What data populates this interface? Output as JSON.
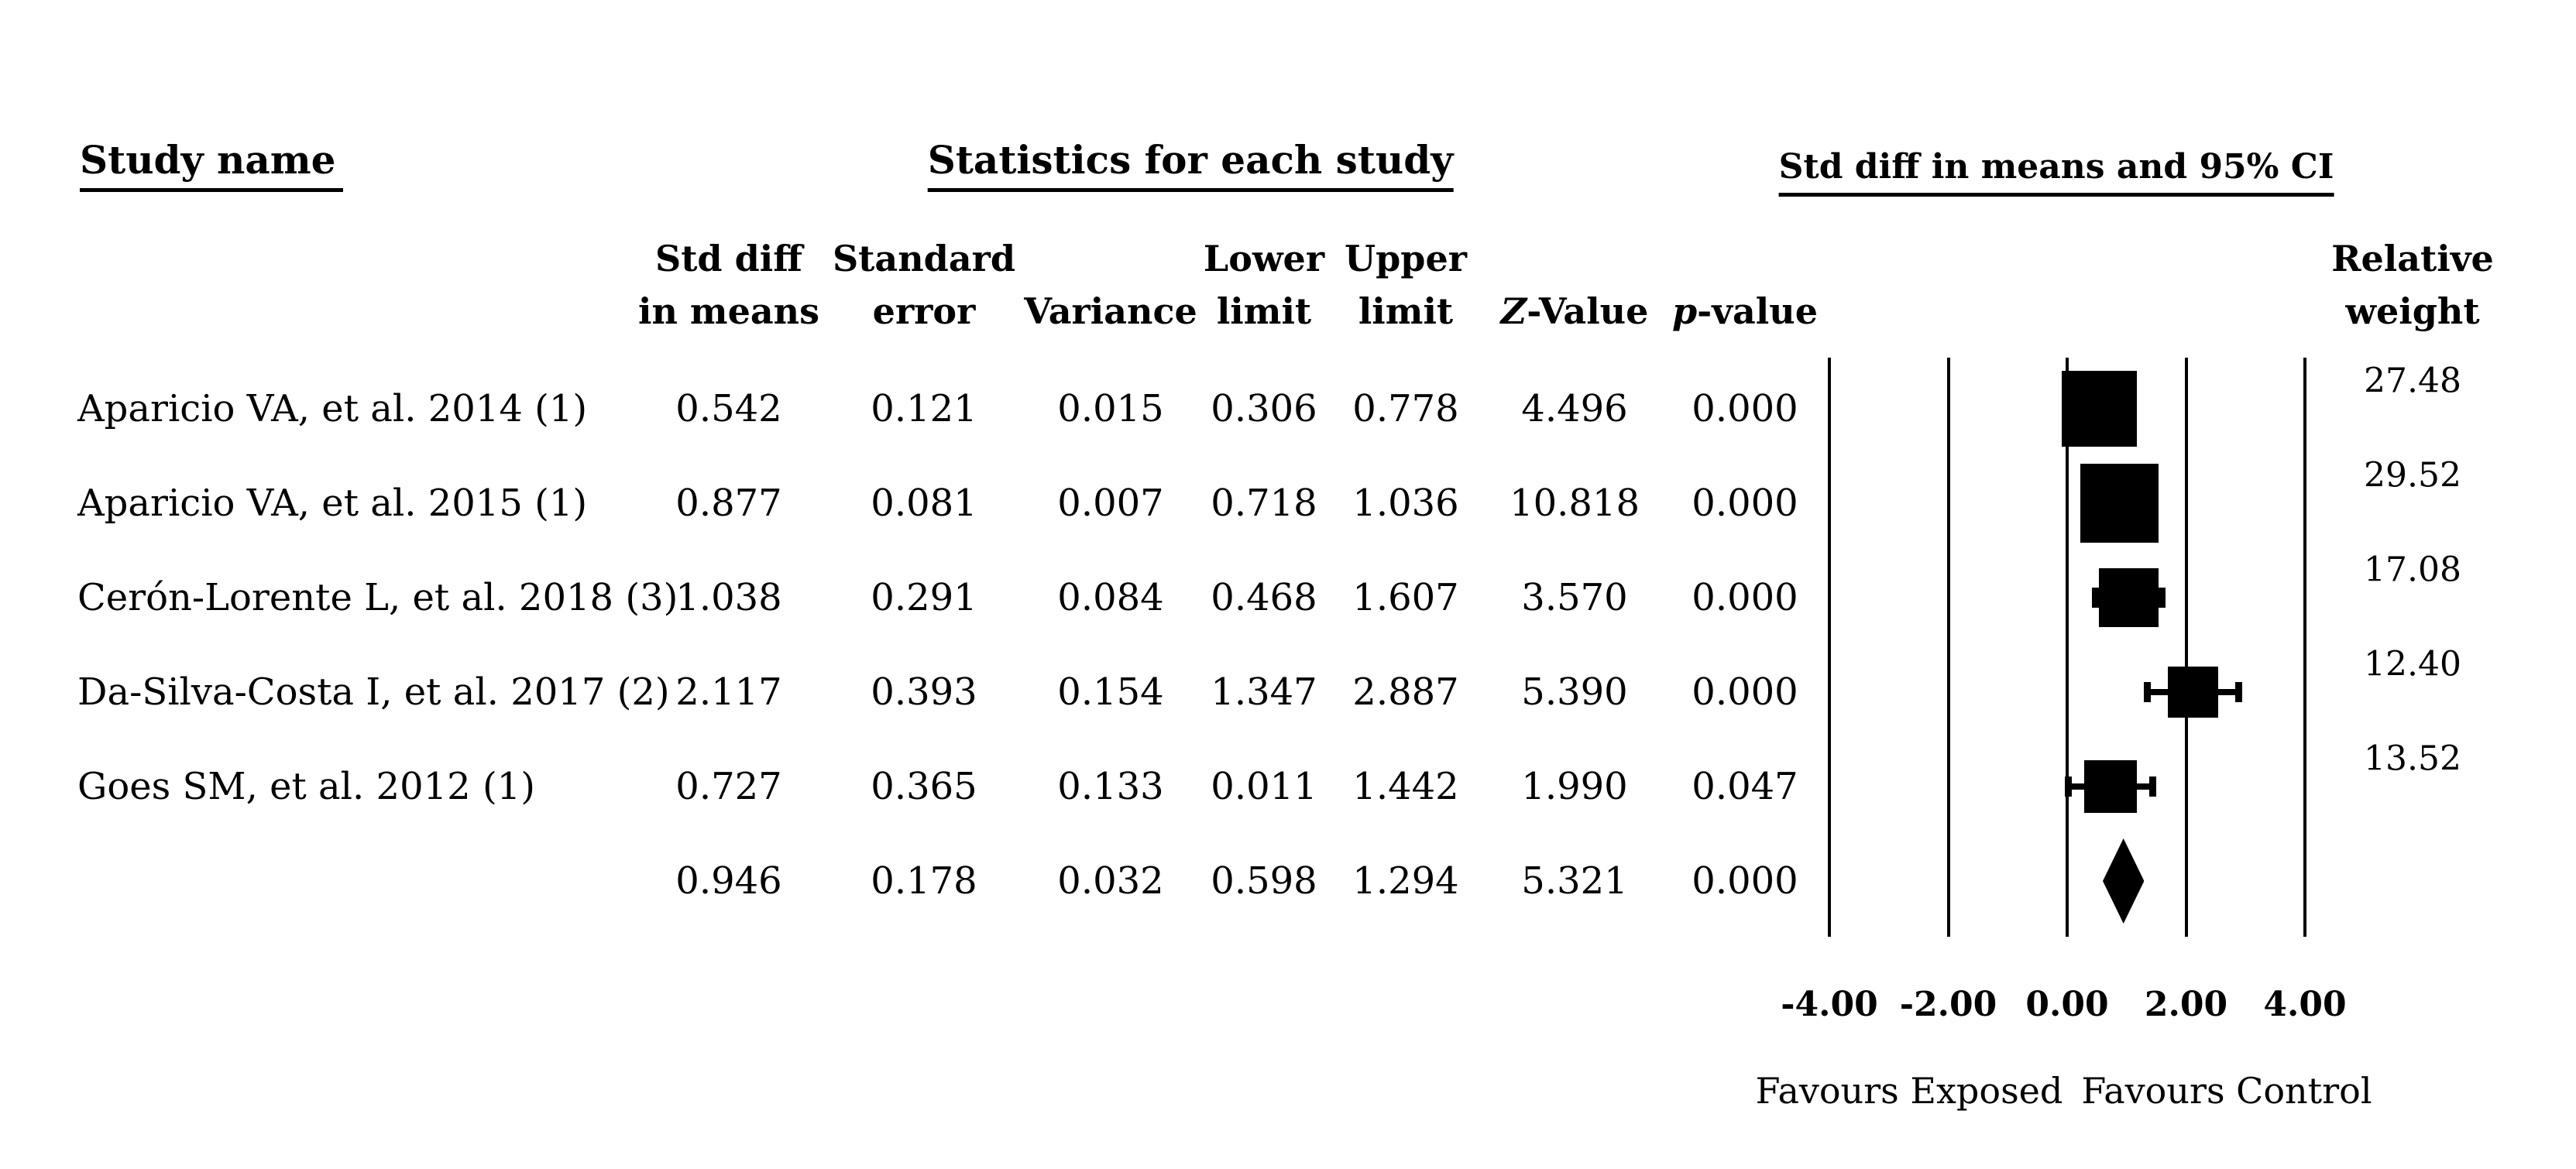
{
  "figure": {
    "study_column_header": "Study name",
    "stats_section_header": "Statistics for each study",
    "ci_section_header": "Std diff in means and 95% CI",
    "columns": [
      {
        "line1": "Std diff",
        "line2": "in means",
        "italic_first_char": false
      },
      {
        "line1": "Standard",
        "line2": "error",
        "italic_first_char": false
      },
      {
        "line1": "",
        "line2": "Variance",
        "italic_first_char": false
      },
      {
        "line1": "Lower",
        "line2": "limit",
        "italic_first_char": false
      },
      {
        "line1": "Upper",
        "line2": "limit",
        "italic_first_char": false
      },
      {
        "line1": "",
        "line2": "Z-Value",
        "italic_first_char": true
      },
      {
        "line1": "",
        "line2": "p-value",
        "italic_first_char": true
      }
    ],
    "weight_column": {
      "line1": "Relative",
      "line2": "weight"
    },
    "colors": {
      "foreground": "#000000",
      "background": "#ffffff"
    }
  },
  "chart_data": {
    "type": "forest",
    "effect_measure": "Std diff in means",
    "studies": [
      {
        "name": "Aparicio VA, et al. 2014 (1)",
        "std_diff": "0.542",
        "standard_error": "0.121",
        "variance": "0.015",
        "lower_limit": "0.306",
        "upper_limit": "0.778",
        "z_value": "4.496",
        "p_value": "0.000",
        "relative_weight": "27.48"
      },
      {
        "name": "Aparicio VA, et al. 2015 (1)",
        "std_diff": "0.877",
        "standard_error": "0.081",
        "variance": "0.007",
        "lower_limit": "0.718",
        "upper_limit": "1.036",
        "z_value": "10.818",
        "p_value": "0.000",
        "relative_weight": "29.52"
      },
      {
        "name": "Cerón-Lorente L, et al. 2018 (3)",
        "std_diff": "1.038",
        "standard_error": "0.291",
        "variance": "0.084",
        "lower_limit": "0.468",
        "upper_limit": "1.607",
        "z_value": "3.570",
        "p_value": "0.000",
        "relative_weight": "17.08"
      },
      {
        "name": "Da-Silva-Costa I, et al. 2017 (2)",
        "std_diff": "2.117",
        "standard_error": "0.393",
        "variance": "0.154",
        "lower_limit": "1.347",
        "upper_limit": "2.887",
        "z_value": "5.390",
        "p_value": "0.000",
        "relative_weight": "12.40"
      },
      {
        "name": "Goes SM, et al. 2012 (1)",
        "std_diff": "0.727",
        "standard_error": "0.365",
        "variance": "0.133",
        "lower_limit": "0.011",
        "upper_limit": "1.442",
        "z_value": "1.990",
        "p_value": "0.047",
        "relative_weight": "13.52"
      }
    ],
    "summary": {
      "std_diff": "0.946",
      "standard_error": "0.178",
      "variance": "0.032",
      "lower_limit": "0.598",
      "upper_limit": "1.294",
      "z_value": "5.321",
      "p_value": "0.000"
    },
    "axis": {
      "ticks": [
        "-4.00",
        "-2.00",
        "0.00",
        "2.00",
        "4.00"
      ],
      "tick_values": [
        -4,
        -2,
        0,
        2,
        4
      ],
      "xlim": [
        -4,
        4
      ],
      "grid": true
    },
    "footer": {
      "left": "Favours Exposed",
      "right": "Favours Control"
    }
  }
}
